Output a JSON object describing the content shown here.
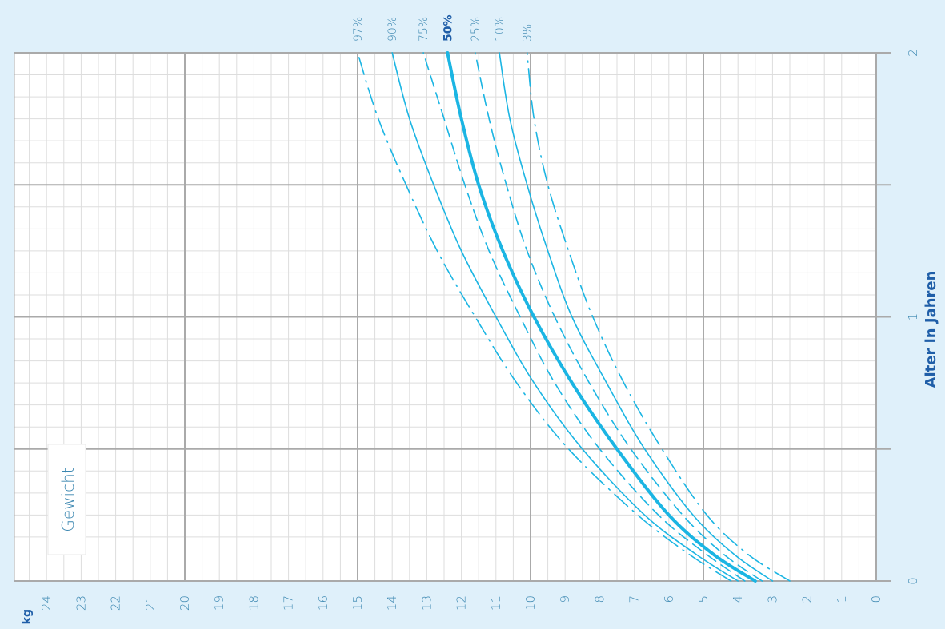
{
  "chart_data": {
    "type": "line",
    "title": "Gewicht",
    "xlabel": "Alter in Jahren",
    "ylabel": "kg",
    "x_range": [
      0,
      2
    ],
    "y_range": [
      0,
      24
    ],
    "x_ticks": [
      "0",
      "1",
      "2"
    ],
    "y_ticks": [
      "0",
      "1",
      "2",
      "3",
      "4",
      "5",
      "6",
      "7",
      "8",
      "9",
      "10",
      "11",
      "12",
      "13",
      "14",
      "15",
      "16",
      "17",
      "18",
      "19",
      "20",
      "21",
      "22",
      "23",
      "24"
    ],
    "grid": true,
    "series": [
      {
        "name": "97%",
        "style": "dashdot",
        "x": [
          0,
          0.1,
          0.25,
          0.5,
          0.75,
          1,
          1.25,
          1.5,
          1.75,
          2
        ],
        "y": [
          4.2,
          5.4,
          6.9,
          8.9,
          10.4,
          11.6,
          12.7,
          13.6,
          14.4,
          15.0
        ]
      },
      {
        "name": "90%",
        "style": "solid",
        "x": [
          0,
          0.1,
          0.25,
          0.5,
          0.75,
          1,
          1.25,
          1.5,
          1.75,
          2
        ],
        "y": [
          4.0,
          5.2,
          6.7,
          8.5,
          9.9,
          11.0,
          12.0,
          12.8,
          13.5,
          14.0
        ]
      },
      {
        "name": "75%",
        "style": "dashed",
        "x": [
          0,
          0.1,
          0.25,
          0.5,
          0.75,
          1,
          1.25,
          1.5,
          1.75,
          2
        ],
        "y": [
          3.8,
          4.9,
          6.3,
          8.0,
          9.3,
          10.3,
          11.2,
          11.9,
          12.5,
          13.1
        ]
      },
      {
        "name": "50%",
        "style": "bold",
        "x": [
          0,
          0.1,
          0.25,
          0.5,
          0.75,
          1,
          1.25,
          1.5,
          1.75,
          2
        ],
        "y": [
          3.5,
          4.7,
          6.0,
          7.5,
          8.8,
          9.9,
          10.8,
          11.5,
          12.0,
          12.4
        ]
      },
      {
        "name": "25%",
        "style": "dashed",
        "x": [
          0,
          0.1,
          0.25,
          0.5,
          0.75,
          1,
          1.25,
          1.5,
          1.75,
          2
        ],
        "y": [
          3.3,
          4.4,
          5.6,
          7.1,
          8.3,
          9.3,
          10.1,
          10.7,
          11.2,
          11.6
        ]
      },
      {
        "name": "10%",
        "style": "solid",
        "x": [
          0,
          0.1,
          0.25,
          0.5,
          0.75,
          1,
          1.25,
          1.5,
          1.75,
          2
        ],
        "y": [
          3.0,
          4.1,
          5.3,
          6.7,
          7.8,
          8.8,
          9.5,
          10.1,
          10.6,
          10.9
        ]
      },
      {
        "name": "3%",
        "style": "dashdot",
        "x": [
          0,
          0.1,
          0.25,
          0.5,
          0.75,
          1,
          1.25,
          1.5,
          1.75,
          2
        ],
        "y": [
          2.5,
          3.7,
          4.9,
          6.2,
          7.3,
          8.2,
          8.9,
          9.5,
          9.9,
          10.1
        ]
      }
    ]
  },
  "colors": {
    "background": "#dff0fa",
    "plot_bg": "#ffffff",
    "curve": "#1bb5e3",
    "major_grid": "#aaaaaa",
    "minor_grid": "#dddddd",
    "label": "#3a86b0",
    "axis_title": "#1f5ea8"
  }
}
